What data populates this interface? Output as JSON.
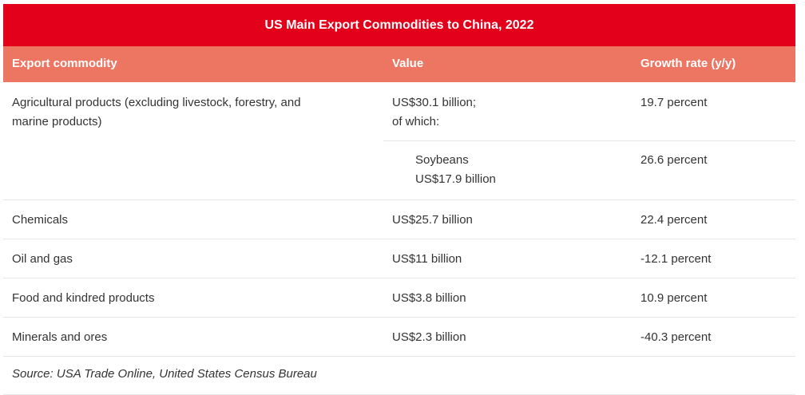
{
  "title": "US Main Export Commodities to China, 2022",
  "headers": {
    "commodity": "Export commodity",
    "value": "Value",
    "growth": "Growth rate (y/y)"
  },
  "agricultural": {
    "commodity_line1": "Agricultural products (excluding livestock, forestry, and",
    "commodity_line2": "marine products)",
    "value_line1": "US$30.1 billion;",
    "value_line2": "of which:",
    "growth": "19.7 percent",
    "sub": {
      "name": "Soybeans",
      "value": "US$17.9 billion",
      "growth": "26.6 percent"
    }
  },
  "rows": [
    {
      "commodity": "Chemicals",
      "value": "US$25.7 billion",
      "growth": "22.4 percent"
    },
    {
      "commodity": "Oil and gas",
      "value": "US$11 billion",
      "growth": "-12.1 percent"
    },
    {
      "commodity": "Food and kindred products",
      "value": "US$3.8 billion",
      "growth": "10.9 percent"
    },
    {
      "commodity": "Minerals and ores",
      "value": "US$2.3 billion",
      "growth": "-40.3 percent"
    }
  ],
  "source": "Source: USA Trade Online, United States Census Bureau",
  "colors": {
    "title_bg": "#e2001a",
    "header_bg": "#ed7662"
  }
}
